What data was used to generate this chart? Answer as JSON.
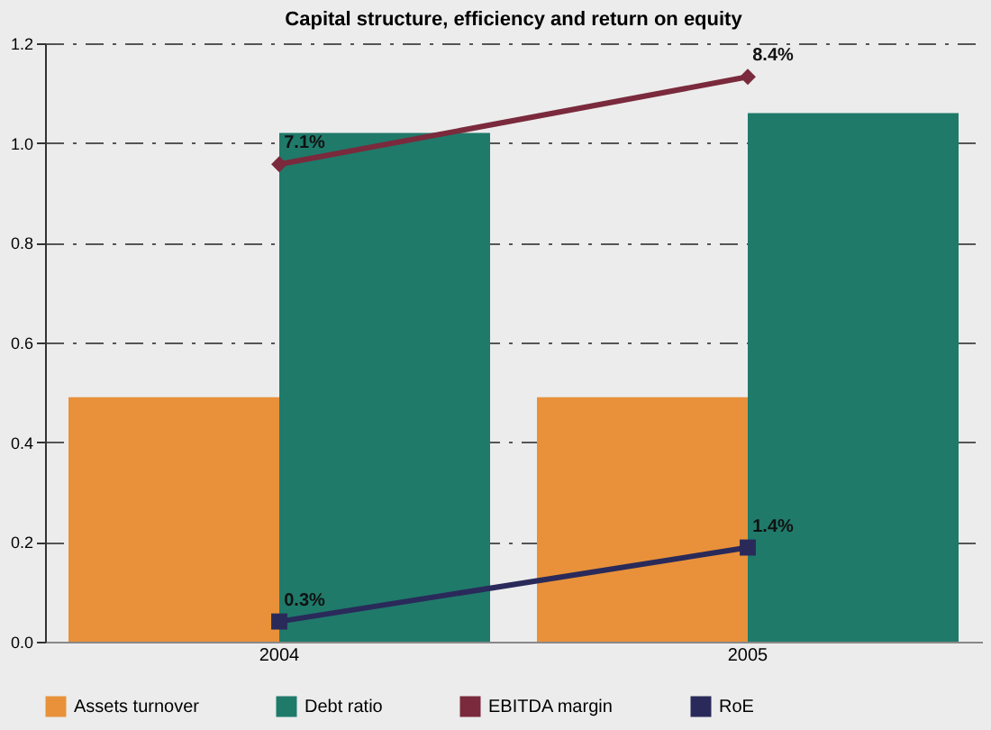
{
  "chart_data": {
    "type": "bar",
    "title": "Capital structure, efficiency and return on equity",
    "categories": [
      "2004",
      "2005"
    ],
    "series": [
      {
        "name": "Assets turnover",
        "color": "#e8913a",
        "values": [
          0.49,
          0.49
        ]
      },
      {
        "name": "Debt ratio",
        "color": "#1f7a6a",
        "values": [
          1.02,
          1.06
        ]
      },
      {
        "name": "EBITDA margin",
        "type": "line",
        "axis": "y2",
        "line_style": "solid",
        "color": "#7a2a3c",
        "marker": "diamond",
        "values": [
          7.1,
          8.4
        ],
        "value_labels": [
          "7.1%",
          "8.4%"
        ]
      },
      {
        "name": "RoE",
        "type": "line",
        "axis": "y2",
        "line_style": "solid",
        "color": "#2a2a5a",
        "marker": "square",
        "values": [
          0.3,
          1.4
        ],
        "value_labels": [
          "0.3%",
          "1.4%"
        ]
      }
    ],
    "ylim": [
      0,
      1.2
    ],
    "yticks": [
      {
        "value": 0,
        "label": "0.0"
      },
      {
        "value": 0.2,
        "label": "0.2"
      },
      {
        "value": 0.4,
        "label": "0.4"
      },
      {
        "value": 0.6,
        "label": "0.6"
      },
      {
        "value": 0.8,
        "label": "0.8"
      },
      {
        "value": 1.0,
        "label": "1.0"
      },
      {
        "value": 1.2,
        "label": "1.2"
      }
    ],
    "y2lim": [
      0,
      8.9
    ],
    "grid": "y",
    "legend": "bottom"
  }
}
